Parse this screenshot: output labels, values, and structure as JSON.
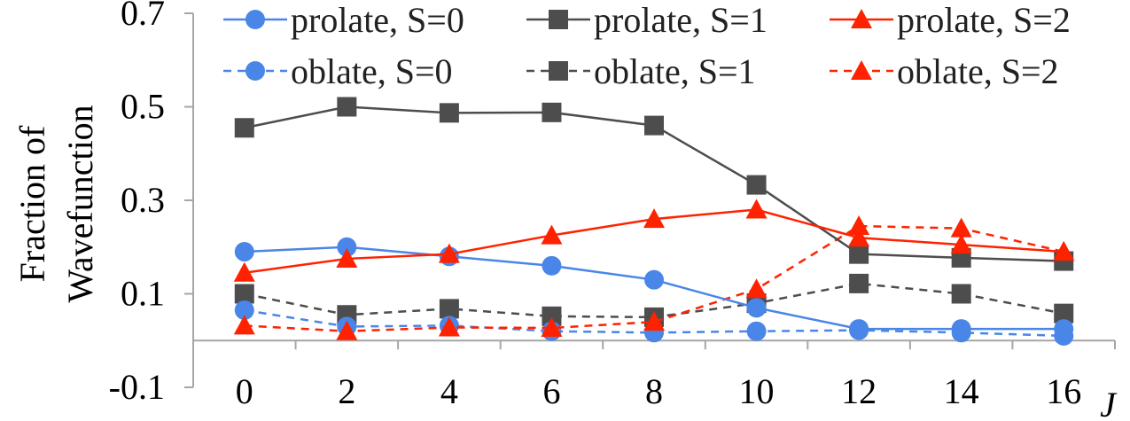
{
  "chart_data": {
    "type": "line",
    "title": "",
    "xlabel": "J",
    "ylabel_lines": [
      "Fraction of",
      "Wavefunction"
    ],
    "x": [
      0,
      2,
      4,
      6,
      8,
      10,
      12,
      14,
      16
    ],
    "x_ticks": [
      "0",
      "2",
      "4",
      "6",
      "8",
      "10",
      "12",
      "14",
      "16"
    ],
    "y_ticks": [
      "-0.1",
      "0.1",
      "0.3",
      "0.5",
      "0.7"
    ],
    "y_tick_values": [
      -0.1,
      0.1,
      0.3,
      0.5,
      0.7
    ],
    "ylim": [
      -0.1,
      0.7
    ],
    "grid": false,
    "legend_position": "top",
    "series": [
      {
        "name": "prolate, S=0",
        "color": "#4a86e8",
        "marker": "circle",
        "dashed": false,
        "values": [
          0.19,
          0.2,
          0.18,
          0.16,
          0.13,
          0.07,
          0.025,
          0.025,
          0.025
        ]
      },
      {
        "name": "prolate, S=1",
        "color": "#4d4d4d",
        "marker": "square",
        "dashed": false,
        "values": [
          0.455,
          0.5,
          0.487,
          0.488,
          0.46,
          0.333,
          0.185,
          0.177,
          0.17
        ]
      },
      {
        "name": "prolate, S=2",
        "color": "#ff2200",
        "marker": "triangle",
        "dashed": false,
        "values": [
          0.145,
          0.175,
          0.185,
          0.225,
          0.26,
          0.28,
          0.22,
          0.205,
          0.19
        ]
      },
      {
        "name": "oblate, S=0",
        "color": "#4a86e8",
        "marker": "circle",
        "dashed": true,
        "values": [
          0.065,
          0.03,
          0.032,
          0.02,
          0.017,
          0.02,
          0.022,
          0.017,
          0.01
        ]
      },
      {
        "name": "oblate, S=1",
        "color": "#4d4d4d",
        "marker": "square",
        "dashed": true,
        "values": [
          0.1,
          0.055,
          0.068,
          0.052,
          0.05,
          0.08,
          0.122,
          0.1,
          0.058
        ]
      },
      {
        "name": "oblate, S=2",
        "color": "#ff2200",
        "marker": "triangle",
        "dashed": true,
        "values": [
          0.032,
          0.02,
          0.028,
          0.027,
          0.04,
          0.11,
          0.245,
          0.24,
          0.19
        ]
      }
    ]
  }
}
